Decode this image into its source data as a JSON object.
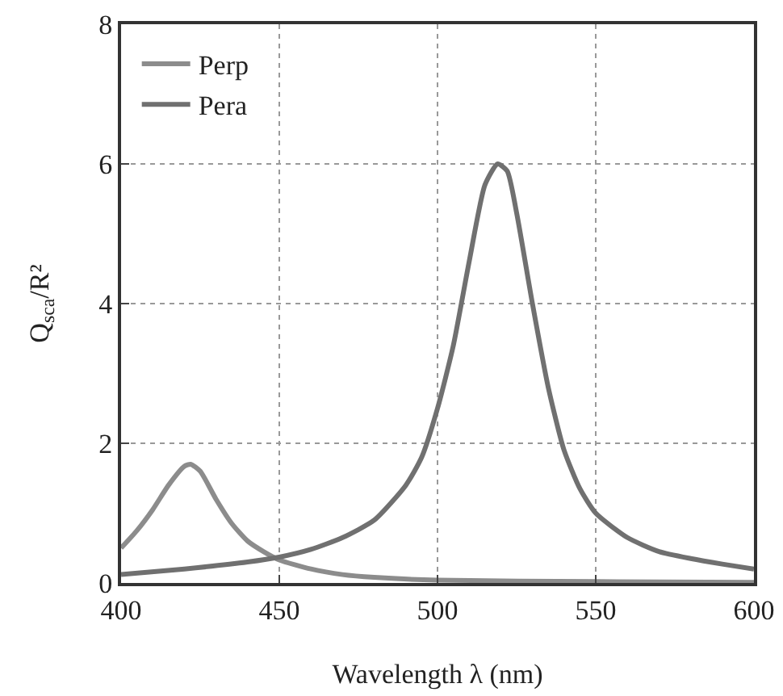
{
  "chart_data": {
    "type": "line",
    "xlabel": "Wavelength λ (nm)",
    "ylabel": "Q$_{sca}$/R²",
    "xlim": [
      400,
      600
    ],
    "xticks": [
      400,
      450,
      500,
      550,
      600
    ],
    "ylim": [
      0,
      8
    ],
    "yticks": [
      0,
      2,
      4,
      6,
      8
    ],
    "grid": true,
    "legend": "top left",
    "line_style": "solid",
    "series": [
      {
        "name": "Perp",
        "color": "#8c8c8c",
        "x": [
          400,
          405,
          410,
          415,
          420,
          422,
          425,
          430,
          435,
          440,
          445,
          450,
          460,
          470,
          480,
          500,
          550,
          600
        ],
        "values": [
          0.5,
          0.75,
          1.05,
          1.4,
          1.67,
          1.7,
          1.6,
          1.2,
          0.85,
          0.6,
          0.45,
          0.33,
          0.2,
          0.12,
          0.08,
          0.04,
          0.02,
          0.01
        ]
      },
      {
        "name": "Pera",
        "color": "#707070",
        "x": [
          400,
          420,
          440,
          450,
          460,
          470,
          480,
          490,
          495,
          500,
          505,
          510,
          515,
          519,
          522,
          525,
          530,
          535,
          540,
          545,
          550,
          560,
          570,
          580,
          590,
          600
        ],
        "values": [
          0.12,
          0.2,
          0.3,
          0.37,
          0.48,
          0.65,
          0.9,
          1.4,
          1.8,
          2.5,
          3.4,
          4.6,
          5.7,
          6.0,
          5.9,
          5.3,
          4.0,
          2.8,
          1.9,
          1.35,
          1.0,
          0.65,
          0.45,
          0.35,
          0.27,
          0.2
        ]
      }
    ]
  }
}
